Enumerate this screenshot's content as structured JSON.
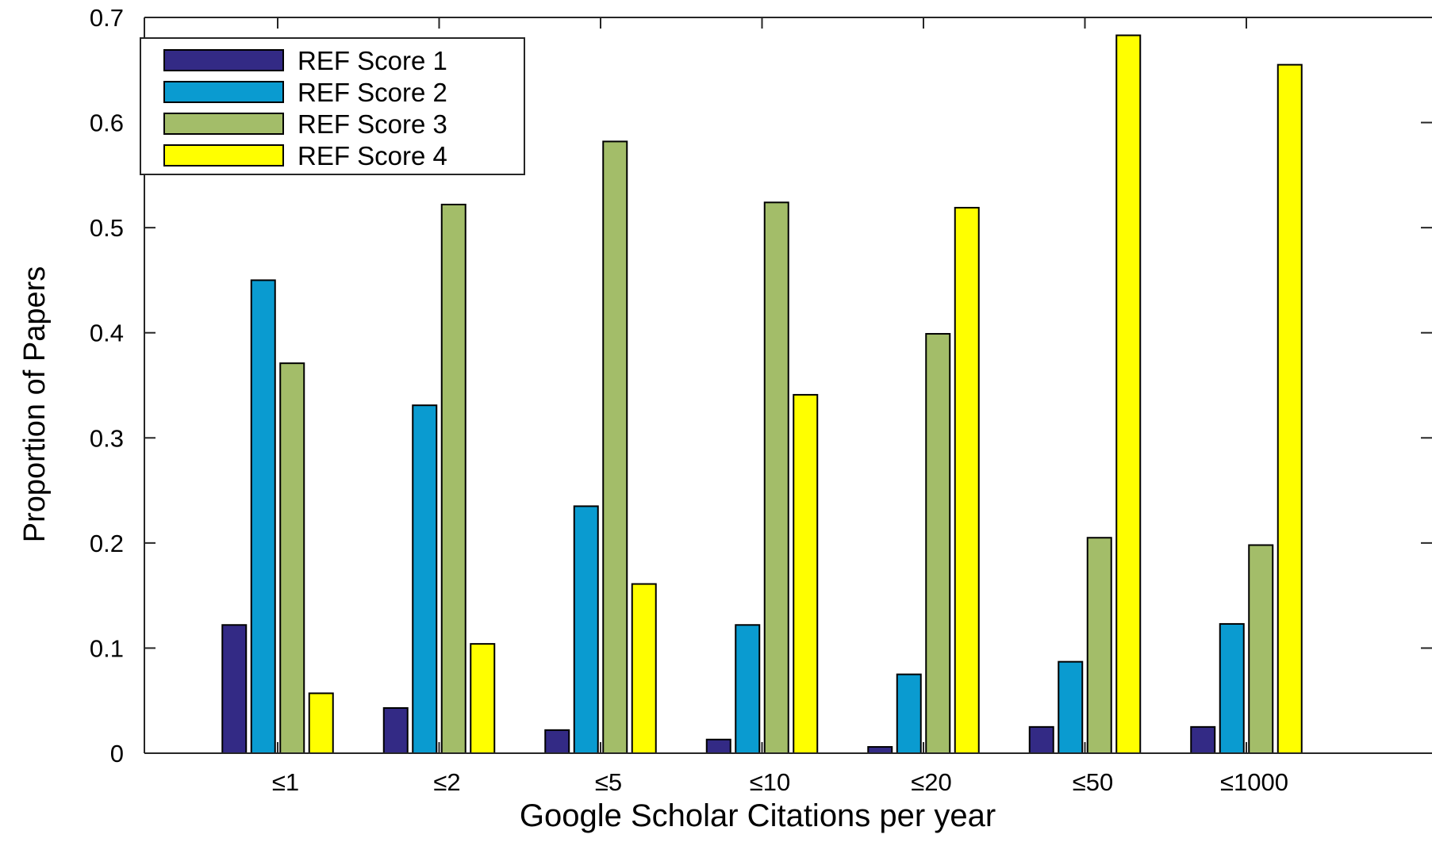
{
  "chart_data": {
    "type": "bar",
    "title": "",
    "xlabel": "Google Scholar Citations per year",
    "ylabel": "Proportion of Papers",
    "categories": [
      "≤1",
      "≤2",
      "≤5",
      "≤10",
      "≤20",
      "≤50",
      "≤1000"
    ],
    "ylim": [
      0,
      0.7
    ],
    "yticks": [
      0,
      0.1,
      0.2,
      0.3,
      0.4,
      0.5,
      0.6,
      0.7
    ],
    "ytick_labels": [
      "0",
      "0.1",
      "0.2",
      "0.3",
      "0.4",
      "0.5",
      "0.6",
      "0.7"
    ],
    "grid": false,
    "legend_position": "top-left",
    "series": [
      {
        "name": "REF Score 1",
        "color": "#332a85",
        "values": [
          0.122,
          0.043,
          0.022,
          0.013,
          0.006,
          0.025,
          0.025
        ]
      },
      {
        "name": "REF Score 2",
        "color": "#0a9bd0",
        "values": [
          0.45,
          0.331,
          0.235,
          0.122,
          0.075,
          0.087,
          0.123
        ]
      },
      {
        "name": "REF Score 3",
        "color": "#a3bd69",
        "values": [
          0.371,
          0.522,
          0.582,
          0.524,
          0.399,
          0.205,
          0.198
        ]
      },
      {
        "name": "REF Score 4",
        "color": "#ffff00",
        "values": [
          0.057,
          0.104,
          0.161,
          0.341,
          0.519,
          0.683,
          0.655
        ]
      }
    ]
  }
}
